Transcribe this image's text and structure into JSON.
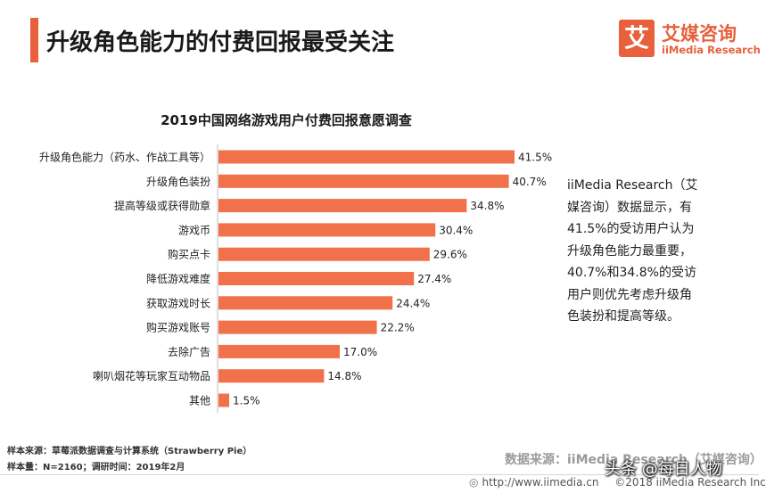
{
  "header": {
    "title": "升级角色能力的付费回报最受关注"
  },
  "logo": {
    "glyph": "艾",
    "name_cn": "艾媒咨询",
    "name_en": "iiMedia Research"
  },
  "commentary": "iiMedia Research（艾媒咨询）数据显示，有41.5%的受访用户认为升级角色能力最重要，40.7%和34.8%的受访用户则优先考虑升级角色装扮和提高等级。",
  "footnotes": {
    "sample_source": "样本来源：草莓派数据调查与计算系统（Strawberry Pie）",
    "sample_size": "样本量：N=2160；调研时间：2019年2月"
  },
  "source_label": "数据来源：iiMedia Research（艾媒咨询）",
  "footer": {
    "url": "http://www.iimedia.cn",
    "copyright": "©2018  iiMedia Research  Inc"
  },
  "watermark": "头条 @每日人物",
  "colors": {
    "accent": "#e8603c",
    "bar": "#f0714a"
  },
  "chart_data": {
    "type": "bar",
    "orientation": "horizontal",
    "title": "2019中国网络游戏用户付费回报意愿调查",
    "categories": [
      "升级角色能力（药水、作战工具等）",
      "升级角色装扮",
      "提高等级或获得勋章",
      "游戏币",
      "购买点卡",
      "降低游戏难度",
      "获取游戏时长",
      "购买游戏账号",
      "去除广告",
      "喇叭烟花等玩家互动物品",
      "其他"
    ],
    "values": [
      41.5,
      40.7,
      34.8,
      30.4,
      29.6,
      27.4,
      24.4,
      22.2,
      17.0,
      14.8,
      1.5
    ],
    "value_labels": [
      "41.5%",
      "40.7%",
      "34.8%",
      "30.4%",
      "29.6%",
      "27.4%",
      "24.4%",
      "22.2%",
      "17.0%",
      "14.8%",
      "1.5%"
    ],
    "unit": "%",
    "xlim": [
      0,
      41.5
    ],
    "grid": false,
    "legend": "none"
  }
}
